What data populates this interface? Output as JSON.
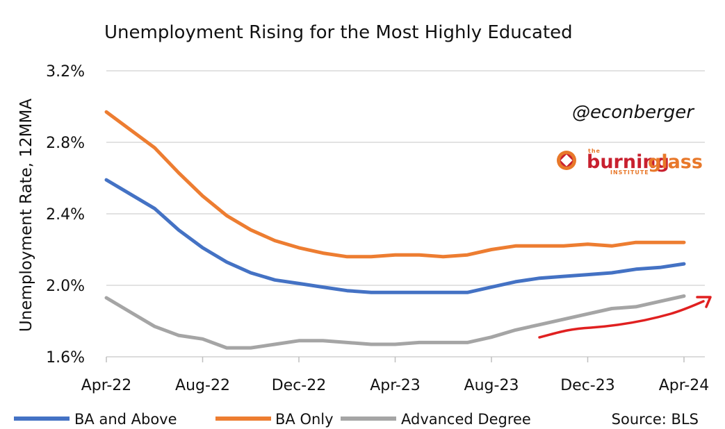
{
  "chart_data": {
    "type": "line",
    "title": "Unemployment Rising for the Most Highly Educated",
    "ylabel": "Unemployment Rate, 12MMA",
    "xlabel": "",
    "ylim": [
      1.6,
      3.2
    ],
    "yticks": [
      1.6,
      2.0,
      2.4,
      2.8,
      3.2
    ],
    "ytick_labels": [
      "1.6%",
      "2.0%",
      "2.4%",
      "2.8%",
      "3.2%"
    ],
    "x_tick_labels": [
      "Apr-22",
      "Aug-22",
      "Dec-22",
      "Apr-23",
      "Aug-23",
      "Dec-23",
      "Apr-24"
    ],
    "x_tick_index": [
      0,
      4,
      8,
      12,
      16,
      20,
      24
    ],
    "n_points": 25,
    "grid": "horizontal",
    "legend_position": "bottom",
    "series": [
      {
        "name": "BA and Above",
        "color": "#4472c4",
        "values": [
          2.59,
          2.51,
          2.43,
          2.31,
          2.21,
          2.13,
          2.07,
          2.03,
          2.01,
          1.99,
          1.97,
          1.96,
          1.96,
          1.96,
          1.96,
          1.96,
          1.99,
          2.02,
          2.04,
          2.05,
          2.06,
          2.07,
          2.09,
          2.1,
          2.12
        ]
      },
      {
        "name": "BA Only",
        "color": "#ed7d31",
        "values": [
          2.97,
          2.87,
          2.77,
          2.63,
          2.5,
          2.39,
          2.31,
          2.25,
          2.21,
          2.18,
          2.16,
          2.16,
          2.17,
          2.17,
          2.16,
          2.17,
          2.2,
          2.22,
          2.22,
          2.22,
          2.23,
          2.22,
          2.24,
          2.24,
          2.24
        ]
      },
      {
        "name": "Advanced Degree",
        "color": "#a5a5a5",
        "values": [
          1.93,
          1.85,
          1.77,
          1.72,
          1.7,
          1.65,
          1.65,
          1.67,
          1.69,
          1.69,
          1.68,
          1.67,
          1.67,
          1.68,
          1.68,
          1.68,
          1.71,
          1.75,
          1.78,
          1.81,
          1.84,
          1.87,
          1.88,
          1.91,
          1.94
        ]
      }
    ],
    "annotations": {
      "handle": "@econberger",
      "source": "Source: BLS",
      "arrow_color": "#e02020"
    }
  },
  "logo": {
    "brand_prefix": "the",
    "brand_main_1": "burning",
    "brand_main_2": "glass",
    "brand_sub": "INSTITUTE",
    "colors": {
      "orange": "#e8782a",
      "red": "#c8202f"
    }
  }
}
